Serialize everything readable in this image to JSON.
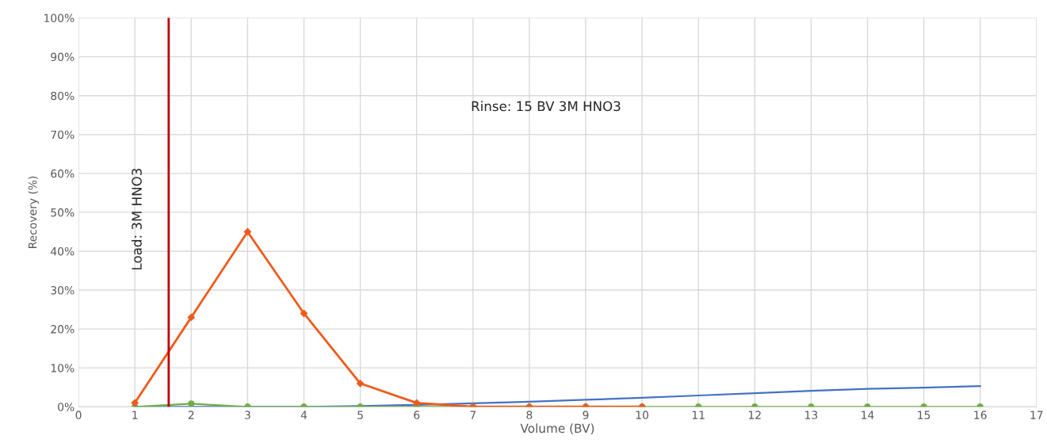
{
  "chart_data": {
    "type": "line",
    "xlabel": "Volume (BV)",
    "ylabel": "Recovery (%)",
    "series": [
      {
        "color": "#4472c4",
        "marker": "none",
        "x": [
          1,
          2,
          3,
          4,
          5,
          6,
          7,
          8,
          9,
          10,
          11,
          12,
          13,
          14,
          15,
          16
        ],
        "values": [
          0,
          0,
          0,
          0,
          0.2,
          0.5,
          0.9,
          1.3,
          1.8,
          2.3,
          2.9,
          3.5,
          4.1,
          4.6,
          4.9,
          5.3
        ]
      },
      {
        "color": "#70ad47",
        "marker": "circle",
        "x": [
          1,
          2,
          3,
          4,
          5,
          6,
          7,
          8,
          9,
          10,
          11,
          12,
          13,
          14,
          15,
          16
        ],
        "values": [
          0,
          0.8,
          0,
          0,
          0,
          0,
          0,
          0,
          0,
          0,
          0,
          0,
          0,
          0,
          0,
          0
        ]
      },
      {
        "color": "#ed5b1c",
        "marker": "diamond",
        "x": [
          1,
          2,
          3,
          4,
          5,
          6,
          7,
          8,
          9,
          10
        ],
        "values": [
          1,
          23,
          45,
          24,
          6,
          1,
          0,
          0,
          0,
          0
        ]
      }
    ],
    "xlim": [
      0,
      17
    ],
    "xticks": [
      0,
      1,
      2,
      3,
      4,
      5,
      6,
      7,
      8,
      9,
      10,
      11,
      12,
      13,
      14,
      15,
      16,
      17
    ],
    "ylim": [
      0,
      100
    ],
    "yticks": [
      {
        "value": 0,
        "label": "0%"
      },
      {
        "value": 10,
        "label": "10%"
      },
      {
        "value": 20,
        "label": "20%"
      },
      {
        "value": 30,
        "label": "30%"
      },
      {
        "value": 40,
        "label": "40%"
      },
      {
        "value": 50,
        "label": "50%"
      },
      {
        "value": 60,
        "label": "60%"
      },
      {
        "value": 70,
        "label": "70%"
      },
      {
        "value": 80,
        "label": "80%"
      },
      {
        "value": 90,
        "label": "90%"
      },
      {
        "value": 100,
        "label": "100%"
      }
    ],
    "ref_lines": [
      {
        "axis": "x",
        "value": 1.6,
        "color": "#c00000"
      }
    ],
    "annotations": [
      "Load: 3M HNO3",
      "Rinse: 15 BV 3M HNO3"
    ],
    "grid": true,
    "legend": false
  }
}
